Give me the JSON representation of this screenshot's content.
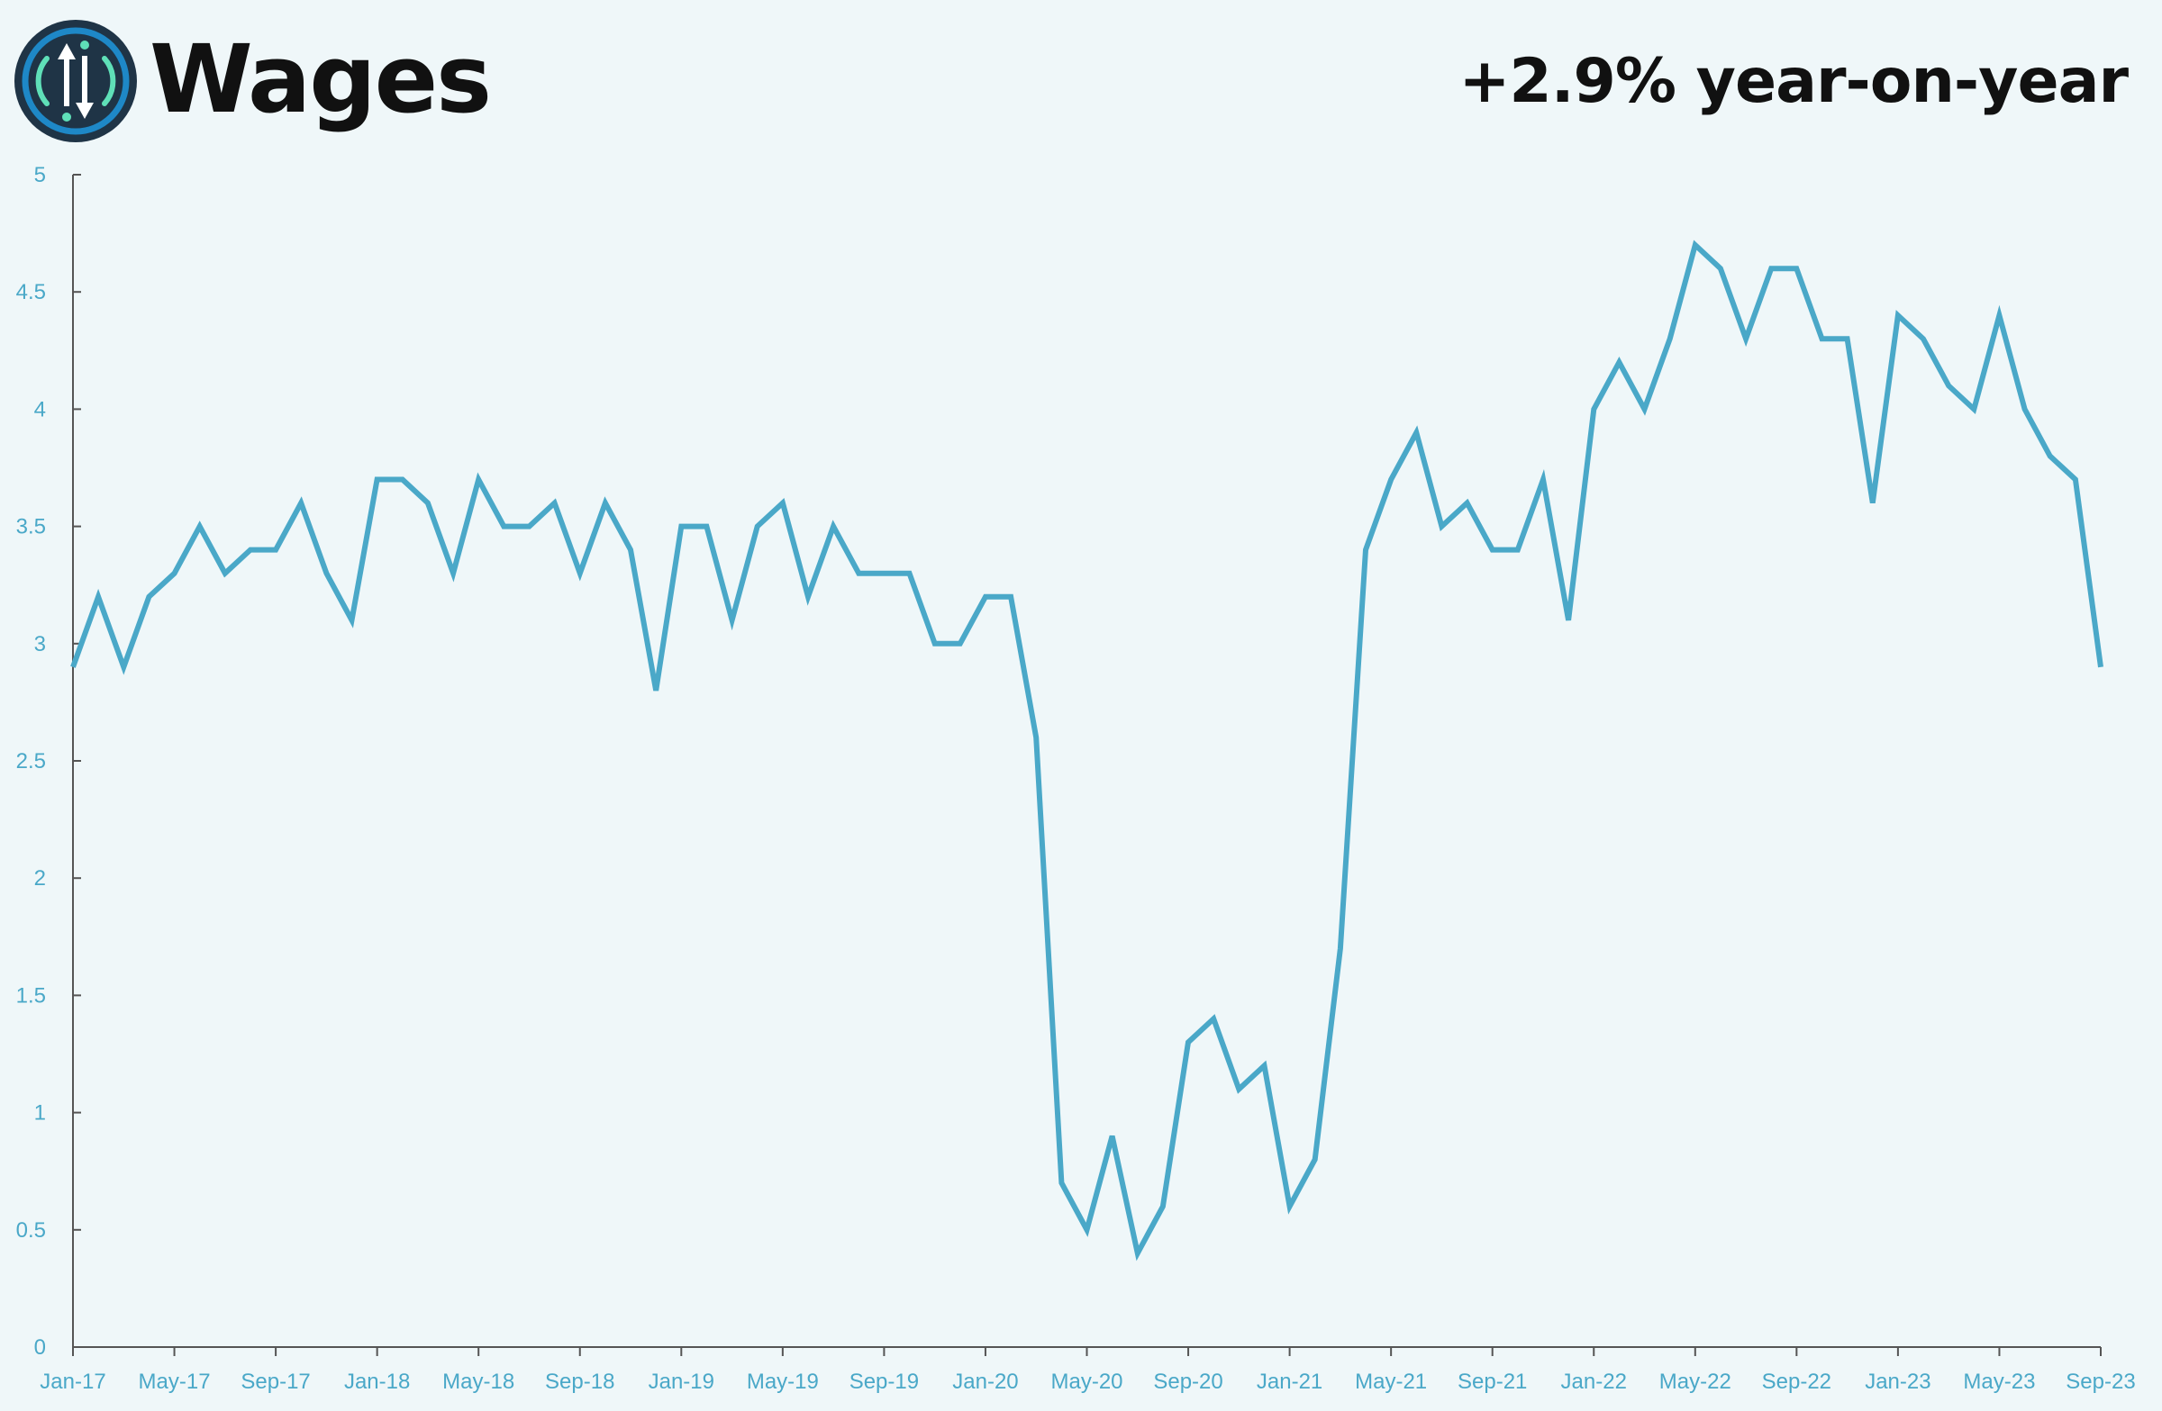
{
  "header": {
    "title": "Wages",
    "headline": "+2.9% year-on-year"
  },
  "colors": {
    "line": "#4aa8c8",
    "axis": "#555555",
    "tick_text": "#4aa8c8",
    "background": "#eff7f9",
    "logo_bg": "#1f3446",
    "logo_ring": "#1e88c7",
    "logo_accent": "#5fe0b8"
  },
  "logo": {
    "icon": "up-down-arrows-icon"
  },
  "chart_data": {
    "type": "line",
    "title": "Wages",
    "xlabel": "",
    "ylabel": "",
    "ylim": [
      0,
      5
    ],
    "grid": false,
    "y_ticks": [
      "0",
      "0.5",
      "1",
      "1.5",
      "2",
      "2.5",
      "3",
      "3.5",
      "4",
      "4.5",
      "5"
    ],
    "x_tick_labels": [
      "Jan-17",
      "May-17",
      "Sep-17",
      "Jan-18",
      "May-18",
      "Sep-18",
      "Jan-19",
      "May-19",
      "Sep-19",
      "Jan-20",
      "May-20",
      "Sep-20",
      "Jan-21",
      "May-21",
      "Sep-21",
      "Jan-22",
      "May-22",
      "Sep-22",
      "Jan-23",
      "May-23",
      "Sep-23"
    ],
    "x": [
      "Jan-17",
      "Feb-17",
      "Mar-17",
      "Apr-17",
      "May-17",
      "Jun-17",
      "Jul-17",
      "Aug-17",
      "Sep-17",
      "Oct-17",
      "Nov-17",
      "Dec-17",
      "Jan-18",
      "Feb-18",
      "Mar-18",
      "Apr-18",
      "May-18",
      "Jun-18",
      "Jul-18",
      "Aug-18",
      "Sep-18",
      "Oct-18",
      "Nov-18",
      "Dec-18",
      "Jan-19",
      "Feb-19",
      "Mar-19",
      "Apr-19",
      "May-19",
      "Jun-19",
      "Jul-19",
      "Aug-19",
      "Sep-19",
      "Oct-19",
      "Nov-19",
      "Dec-19",
      "Jan-20",
      "Feb-20",
      "Mar-20",
      "Apr-20",
      "May-20",
      "Jun-20",
      "Jul-20",
      "Aug-20",
      "Sep-20",
      "Oct-20",
      "Nov-20",
      "Dec-20",
      "Jan-21",
      "Feb-21",
      "Mar-21",
      "Apr-21",
      "May-21",
      "Jun-21",
      "Jul-21",
      "Aug-21",
      "Sep-21",
      "Oct-21",
      "Nov-21",
      "Dec-21",
      "Jan-22",
      "Feb-22",
      "Mar-22",
      "Apr-22",
      "May-22",
      "Jun-22",
      "Jul-22",
      "Aug-22",
      "Sep-22",
      "Oct-22",
      "Nov-22",
      "Dec-22",
      "Jan-23",
      "Feb-23",
      "Mar-23",
      "Apr-23",
      "May-23",
      "Jun-23",
      "Jul-23",
      "Aug-23",
      "Sep-23"
    ],
    "series": [
      {
        "values": [
          2.9,
          3.2,
          2.9,
          3.2,
          3.3,
          3.5,
          3.3,
          3.4,
          3.4,
          3.6,
          3.3,
          3.1,
          3.7,
          3.7,
          3.6,
          3.3,
          3.7,
          3.5,
          3.5,
          3.6,
          3.3,
          3.6,
          3.4,
          2.8,
          3.5,
          3.5,
          3.1,
          3.5,
          3.6,
          3.2,
          3.5,
          3.3,
          3.3,
          3.3,
          3.0,
          3.0,
          3.2,
          3.2,
          2.6,
          0.7,
          0.5,
          0.9,
          0.4,
          0.6,
          1.3,
          1.4,
          1.1,
          1.2,
          0.6,
          0.8,
          1.7,
          3.4,
          3.7,
          3.9,
          3.5,
          3.6,
          3.4,
          3.4,
          3.7,
          3.1,
          4.0,
          4.2,
          4.0,
          4.3,
          4.7,
          4.6,
          4.3,
          4.6,
          4.6,
          4.3,
          4.3,
          3.6,
          4.4,
          4.3,
          4.1,
          4.0,
          4.4,
          4.0,
          3.8,
          3.7,
          2.9
        ]
      }
    ]
  }
}
